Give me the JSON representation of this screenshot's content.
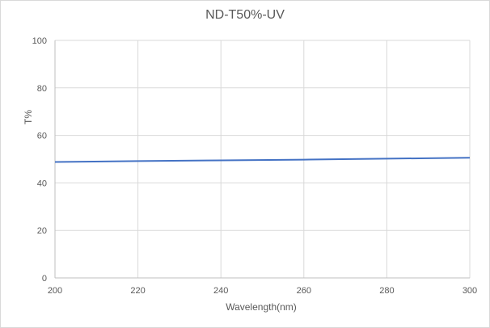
{
  "chart_data": {
    "type": "line",
    "title": "ND-T50%-UV",
    "xlabel": "Wavelength(nm)",
    "ylabel": "T%",
    "xlim": [
      200,
      300
    ],
    "ylim": [
      0,
      100
    ],
    "x_ticks": [
      200,
      220,
      240,
      260,
      280,
      300
    ],
    "y_ticks": [
      0,
      20,
      40,
      60,
      80,
      100
    ],
    "grid": true,
    "legend": null,
    "series": [
      {
        "name": "T%",
        "color": "#4472c4",
        "x": [
          200,
          220,
          240,
          260,
          280,
          300
        ],
        "values": [
          48.8,
          49.2,
          49.5,
          49.8,
          50.2,
          50.6
        ]
      }
    ]
  }
}
